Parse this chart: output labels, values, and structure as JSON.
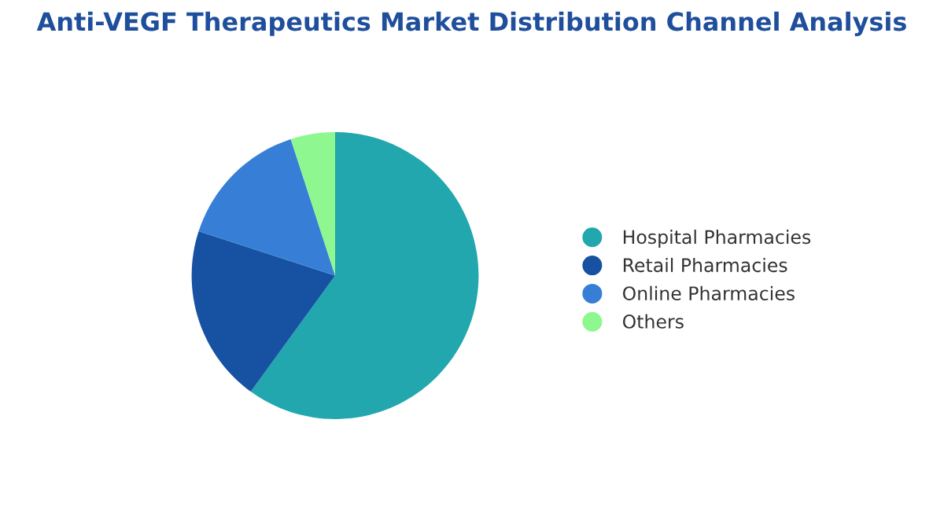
{
  "chart_data": {
    "type": "pie",
    "title": "Anti-VEGF Therapeutics Market Distribution Channel Analysis",
    "categories": [
      "Hospital Pharmacies",
      "Retail Pharmacies",
      "Online Pharmacies",
      "Others"
    ],
    "values": [
      60,
      20,
      15,
      5
    ],
    "colors": [
      "#21a7ad",
      "#1652a1",
      "#377fd6",
      "#8ef78f"
    ],
    "legend": "right"
  }
}
